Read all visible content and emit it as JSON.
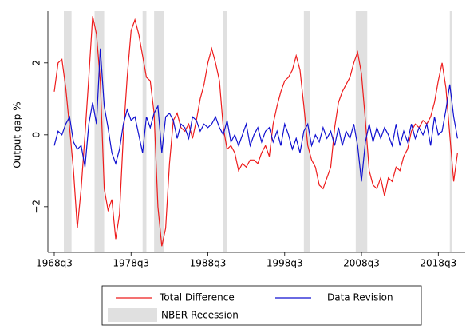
{
  "chart_data": {
    "type": "line",
    "y_label": "Output gap %",
    "x": [
      1968.5,
      1969.0,
      1969.5,
      1970.0,
      1970.5,
      1971.0,
      1971.5,
      1972.0,
      1972.5,
      1973.0,
      1973.5,
      1974.0,
      1974.5,
      1975.0,
      1975.5,
      1976.0,
      1976.5,
      1977.0,
      1977.5,
      1978.0,
      1978.5,
      1979.0,
      1979.5,
      1980.0,
      1980.5,
      1981.0,
      1981.5,
      1982.0,
      1982.5,
      1983.0,
      1983.5,
      1984.0,
      1984.5,
      1985.0,
      1985.5,
      1986.0,
      1986.5,
      1987.0,
      1987.5,
      1988.0,
      1988.5,
      1989.0,
      1989.5,
      1990.0,
      1990.5,
      1991.0,
      1991.5,
      1992.0,
      1992.5,
      1993.0,
      1993.5,
      1994.0,
      1994.5,
      1995.0,
      1995.5,
      1996.0,
      1996.5,
      1997.0,
      1997.5,
      1998.0,
      1998.5,
      1999.0,
      1999.5,
      2000.0,
      2000.5,
      2001.0,
      2001.5,
      2002.0,
      2002.5,
      2003.0,
      2003.5,
      2004.0,
      2004.5,
      2005.0,
      2005.5,
      2006.0,
      2006.5,
      2007.0,
      2007.5,
      2008.0,
      2008.5,
      2009.0,
      2009.5,
      2010.0,
      2010.5,
      2011.0,
      2011.5,
      2012.0,
      2012.5,
      2013.0,
      2013.5,
      2014.0,
      2014.5,
      2015.0,
      2015.5,
      2016.0,
      2016.5,
      2017.0,
      2017.5,
      2018.0,
      2018.5,
      2019.0,
      2019.5,
      2020.0,
      2020.5,
      2021.0
    ],
    "series": [
      {
        "name": "Total Difference",
        "color": "#ee1c1c",
        "values": [
          1.2,
          2.0,
          2.1,
          1.3,
          0.2,
          -1.0,
          -2.6,
          -1.5,
          0.0,
          1.6,
          3.3,
          2.8,
          1.5,
          -1.5,
          -2.1,
          -1.8,
          -2.9,
          -2.2,
          0.0,
          1.6,
          2.9,
          3.2,
          2.8,
          2.2,
          1.6,
          1.5,
          0.6,
          -2.0,
          -3.1,
          -2.6,
          -0.8,
          0.4,
          0.6,
          0.2,
          0.1,
          0.3,
          -0.1,
          0.4,
          1.0,
          1.4,
          2.0,
          2.4,
          2.0,
          1.5,
          0.2,
          -0.4,
          -0.3,
          -0.5,
          -1.0,
          -0.8,
          -0.9,
          -0.7,
          -0.7,
          -0.8,
          -0.5,
          -0.3,
          -0.6,
          0.3,
          0.8,
          1.2,
          1.5,
          1.6,
          1.8,
          2.2,
          1.8,
          0.8,
          -0.3,
          -0.7,
          -0.9,
          -1.4,
          -1.5,
          -1.2,
          -0.9,
          0.2,
          0.9,
          1.2,
          1.4,
          1.6,
          2.0,
          2.3,
          1.7,
          0.4,
          -1.0,
          -1.4,
          -1.5,
          -1.2,
          -1.7,
          -1.2,
          -1.3,
          -0.9,
          -1.0,
          -0.6,
          -0.4,
          0.1,
          0.3,
          0.2,
          0.4,
          0.3,
          0.5,
          0.9,
          1.5,
          2.0,
          1.3,
          0.0,
          -1.3,
          -0.5
        ]
      },
      {
        "name": "Data Revision",
        "color": "#1010d0",
        "values": [
          -0.3,
          0.1,
          0.0,
          0.3,
          0.5,
          -0.2,
          -0.4,
          -0.3,
          -0.9,
          0.3,
          0.9,
          0.3,
          2.4,
          0.8,
          0.2,
          -0.5,
          -0.8,
          -0.4,
          0.3,
          0.7,
          0.4,
          0.5,
          0.0,
          -0.5,
          0.5,
          0.2,
          0.6,
          0.8,
          -0.5,
          0.5,
          0.6,
          0.4,
          -0.1,
          0.3,
          0.2,
          -0.1,
          0.5,
          0.4,
          0.1,
          0.3,
          0.2,
          0.3,
          0.5,
          0.2,
          0.0,
          0.4,
          -0.2,
          0.0,
          -0.3,
          0.0,
          0.3,
          -0.3,
          0.0,
          0.2,
          -0.2,
          0.1,
          0.2,
          -0.2,
          0.1,
          -0.3,
          0.3,
          0.0,
          -0.4,
          -0.1,
          -0.5,
          0.1,
          0.3,
          -0.3,
          0.0,
          -0.2,
          0.2,
          -0.1,
          0.1,
          -0.3,
          0.2,
          -0.3,
          0.1,
          -0.1,
          0.3,
          -0.3,
          -1.3,
          -0.2,
          0.3,
          -0.2,
          0.2,
          -0.1,
          0.2,
          0.0,
          -0.3,
          0.3,
          -0.3,
          0.1,
          -0.2,
          0.3,
          -0.1,
          0.2,
          0.0,
          0.3,
          -0.3,
          0.5,
          0.0,
          0.1,
          0.7,
          1.4,
          0.5,
          -0.1
        ]
      }
    ],
    "recession_label": "NBER Recession",
    "recessions": [
      [
        1969.75,
        1970.75
      ],
      [
        1973.75,
        1975.0
      ],
      [
        1980.0,
        1980.5
      ],
      [
        1981.5,
        1982.75
      ],
      [
        1990.5,
        1991.0
      ],
      [
        2001.0,
        2001.75
      ],
      [
        2007.75,
        2009.25
      ],
      [
        2020.0,
        2020.25
      ]
    ],
    "recession_color": "#e0e0e0",
    "xlim": [
      1967.67,
      2022.0
    ],
    "xticks": [
      {
        "value": 1968.5,
        "label": "1968q3"
      },
      {
        "value": 1978.5,
        "label": "1978q3"
      },
      {
        "value": 1988.5,
        "label": "1988q3"
      },
      {
        "value": 1998.5,
        "label": "1998q3"
      },
      {
        "value": 2008.5,
        "label": "2008q3"
      },
      {
        "value": 2018.5,
        "label": "2018q3"
      }
    ],
    "ylim": [
      -3.27,
      3.44
    ],
    "yticks": [
      {
        "value": -2,
        "label": "−2"
      },
      0,
      2
    ]
  }
}
